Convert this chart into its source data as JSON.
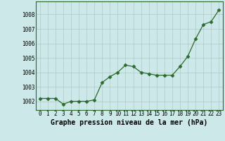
{
  "x": [
    0,
    1,
    2,
    3,
    4,
    5,
    6,
    7,
    8,
    9,
    10,
    11,
    12,
    13,
    14,
    15,
    16,
    17,
    18,
    19,
    20,
    21,
    22,
    23
  ],
  "y": [
    1002.2,
    1002.2,
    1002.2,
    1001.8,
    1002.0,
    1002.0,
    1002.0,
    1002.1,
    1003.3,
    1003.7,
    1004.0,
    1004.5,
    1004.4,
    1004.0,
    1003.9,
    1003.8,
    1003.8,
    1003.8,
    1004.4,
    1005.1,
    1006.3,
    1007.3,
    1007.5,
    1008.3
  ],
  "line_color": "#2d6a2d",
  "marker": "D",
  "marker_size": 2.5,
  "bg_color": "#cce8e8",
  "grid_color": "#b0c8c8",
  "xlabel": "Graphe pression niveau de la mer (hPa)",
  "xlabel_fontsize": 7,
  "ylabel_ticks": [
    1002,
    1003,
    1004,
    1005,
    1006,
    1007,
    1008
  ],
  "xlim": [
    -0.5,
    23.5
  ],
  "ylim": [
    1001.4,
    1008.9
  ],
  "xtick_labels": [
    "0",
    "1",
    "2",
    "3",
    "4",
    "5",
    "6",
    "7",
    "8",
    "9",
    "10",
    "11",
    "12",
    "13",
    "14",
    "15",
    "16",
    "17",
    "18",
    "19",
    "20",
    "21",
    "22",
    "23"
  ],
  "tick_fontsize": 5.5,
  "outer_bg": "#cce8e8",
  "spine_color": "#2d6a2d"
}
